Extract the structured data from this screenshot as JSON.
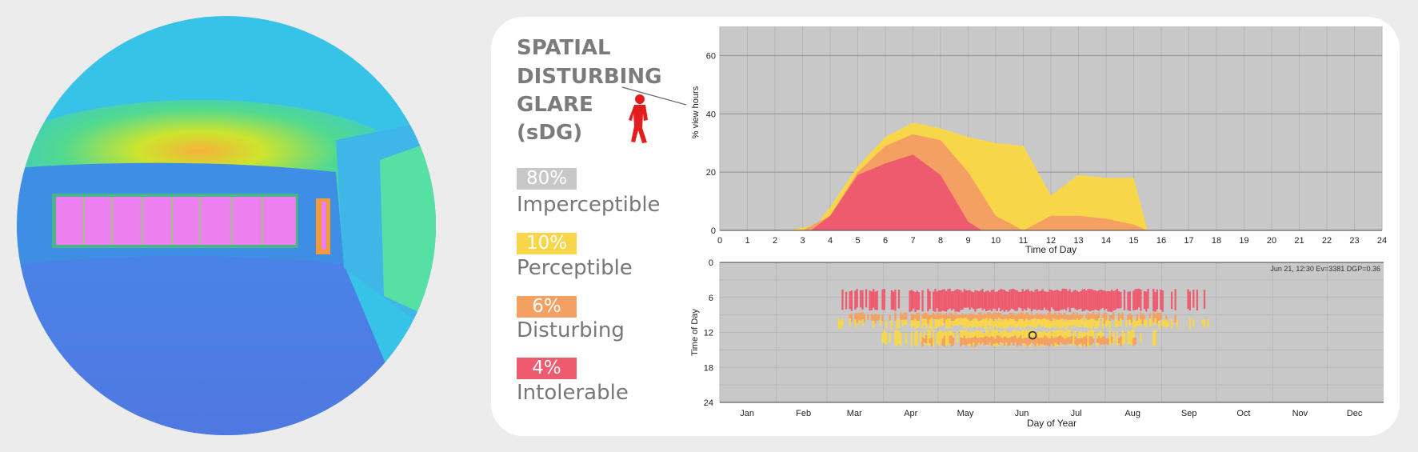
{
  "title_lines": [
    "SPATIAL",
    "DISTURBING",
    "GLARE",
    "(sDG)"
  ],
  "categories": [
    {
      "percent": "80%",
      "label": "Imperceptible",
      "color": "#c8c8c8"
    },
    {
      "percent": "10%",
      "label": "Perceptible",
      "color": "#f8d64a"
    },
    {
      "percent": "6%",
      "label": "Disturbing",
      "color": "#f4a062"
    },
    {
      "percent": "4%",
      "label": "Intolerable",
      "color": "#ee5a6e"
    }
  ],
  "figure_icon": "person-icon",
  "chart_data": [
    {
      "type": "area",
      "xlabel": "Time of Day",
      "ylabel": "% view hours",
      "xlim": [
        0,
        24
      ],
      "ylim": [
        0,
        70
      ],
      "x_ticks": [
        0,
        1,
        2,
        3,
        4,
        5,
        6,
        7,
        8,
        9,
        10,
        11,
        12,
        13,
        14,
        15,
        16,
        17,
        18,
        19,
        20,
        21,
        22,
        23,
        24
      ],
      "y_ticks": [
        0,
        20,
        40,
        60
      ],
      "grid": true,
      "series": [
        {
          "name": "Perceptible",
          "color": "#f8d64a",
          "x": [
            2.5,
            3.5,
            4,
            5,
            6,
            7,
            8,
            9,
            10,
            11,
            12,
            13,
            14,
            15,
            15.5
          ],
          "y": [
            0,
            2,
            8,
            22,
            32,
            37,
            35,
            32,
            30,
            29,
            12,
            19,
            18,
            18,
            0
          ]
        },
        {
          "name": "Disturbing",
          "color": "#f4a062",
          "x": [
            3,
            4,
            5,
            6,
            7,
            8,
            9,
            10,
            11,
            12,
            13,
            14,
            15,
            15.5
          ],
          "y": [
            0,
            5,
            20,
            29,
            33,
            31,
            20,
            5,
            0,
            5,
            5,
            4,
            2,
            0
          ]
        },
        {
          "name": "Intolerable",
          "color": "#ee5a6e",
          "x": [
            3.3,
            4,
            5,
            6,
            7,
            8,
            9,
            9.5
          ],
          "y": [
            0,
            5,
            19,
            23,
            26,
            19,
            3,
            0
          ]
        }
      ]
    },
    {
      "type": "heatmap",
      "xlabel": "Day of Year",
      "ylabel": "Time of Day",
      "x_categories": [
        "Jan",
        "Feb",
        "Mar",
        "Apr",
        "May",
        "Jun",
        "Jul",
        "Aug",
        "Sep",
        "Oct",
        "Nov",
        "Dec"
      ],
      "y_ticks": [
        0,
        6,
        12,
        18,
        24
      ],
      "ylim": [
        0,
        24
      ],
      "annotation": "Jun 21, 12:30 Ev=3381 DGP=0.36",
      "marker": {
        "day": 172,
        "hour": 12.5
      },
      "cell_colors": {
        "intolerable": "#ee5a6e",
        "disturbing": "#f4a062",
        "perceptible": "#f8d64a"
      },
      "bands": [
        {
          "level": "intolerable",
          "day_start": 65,
          "day_end": 268,
          "hour_start": 4.5,
          "hour_end": 8.5
        },
        {
          "level": "disturbing",
          "day_start": 62,
          "day_end": 258,
          "hour_start": 8.5,
          "hour_end": 10.5
        },
        {
          "level": "perceptible",
          "day_start": 62,
          "day_end": 270,
          "hour_start": 9.5,
          "hour_end": 11.5
        },
        {
          "level": "perceptible",
          "day_start": 80,
          "day_end": 240,
          "hour_start": 11.5,
          "hour_end": 14.5
        },
        {
          "level": "disturbing",
          "day_start": 110,
          "day_end": 230,
          "hour_start": 12.5,
          "hour_end": 14.5
        }
      ]
    }
  ]
}
